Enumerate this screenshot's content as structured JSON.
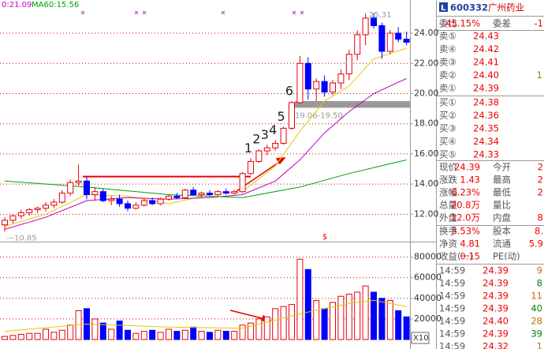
{
  "chart_data": {
    "type": "candlestick",
    "header_ma": "0:21.09",
    "header_ma60": "MA60:15.56",
    "open": [
      11.3,
      11.6,
      11.9,
      12.1,
      12.3,
      12.4,
      12.6,
      12.8,
      13.4,
      14.1,
      14.2,
      13.3,
      13.5,
      12.9,
      13.0,
      12.7,
      12.4,
      12.6,
      12.9,
      12.7,
      13.0,
      13.2,
      13.1,
      13.6,
      13.3,
      13.4,
      13.3,
      13.5,
      13.4,
      13.5,
      14.7,
      15.5,
      16.2,
      16.4,
      16.7,
      17.7,
      19.4,
      22.0,
      20.3,
      20.8,
      20.1,
      20.7,
      21.3,
      22.6,
      23.9,
      25.0,
      24.5,
      22.8,
      24.0,
      23.6
    ],
    "high": [
      11.8,
      12.0,
      12.3,
      12.4,
      12.5,
      12.8,
      13.0,
      13.6,
      14.3,
      15.3,
      14.5,
      13.8,
      13.7,
      13.2,
      13.3,
      12.9,
      12.8,
      13.0,
      13.1,
      13.1,
      13.3,
      13.4,
      13.7,
      13.8,
      13.5,
      13.6,
      13.6,
      13.7,
      13.6,
      14.8,
      15.7,
      16.3,
      16.6,
      16.9,
      17.8,
      19.5,
      22.5,
      22.4,
      21.0,
      21.2,
      20.9,
      21.6,
      22.9,
      24.2,
      25.3,
      25.31,
      24.7,
      24.2,
      24.4,
      24.1
    ],
    "low": [
      10.85,
      11.4,
      11.7,
      11.9,
      12.1,
      12.2,
      12.4,
      12.7,
      13.2,
      13.9,
      13.0,
      12.9,
      12.8,
      12.6,
      12.5,
      12.2,
      12.3,
      12.5,
      12.6,
      12.6,
      12.9,
      13.0,
      13.0,
      13.2,
      13.1,
      13.2,
      13.2,
      13.3,
      13.3,
      13.4,
      14.6,
      15.4,
      15.9,
      16.2,
      16.6,
      17.6,
      19.3,
      19.6,
      19.5,
      19.8,
      19.9,
      20.3,
      20.9,
      22.2,
      23.2,
      24.3,
      22.3,
      22.6,
      23.4,
      23.2
    ],
    "close": [
      11.6,
      11.9,
      12.1,
      12.3,
      12.4,
      12.6,
      12.8,
      13.4,
      14.1,
      14.2,
      13.3,
      13.5,
      12.9,
      13.0,
      12.7,
      12.4,
      12.6,
      12.9,
      12.7,
      13.0,
      13.2,
      13.1,
      13.6,
      13.3,
      13.4,
      13.3,
      13.5,
      13.4,
      13.5,
      14.7,
      15.5,
      16.2,
      16.4,
      16.7,
      17.7,
      19.4,
      22.0,
      20.3,
      20.8,
      20.1,
      20.7,
      21.3,
      22.6,
      23.9,
      25.0,
      24.5,
      22.8,
      24.0,
      23.6,
      23.4
    ],
    "up_color": "#e8000b",
    "down_color": "#0000ff",
    "ylim": [
      10.5,
      26.2
    ],
    "yticks": [
      {
        "value": 12,
        "label": "12.00"
      },
      {
        "value": 14,
        "label": "14.00"
      },
      {
        "value": 16,
        "label": "16.00"
      },
      {
        "value": 18,
        "label": "18.00"
      },
      {
        "value": 20,
        "label": "20.00"
      },
      {
        "value": 22,
        "label": "22.00"
      },
      {
        "value": 24,
        "label": "24.00"
      }
    ],
    "grid": true,
    "lines": [
      {
        "color": "#e6c800",
        "x": [
          0,
          5,
          10,
          15,
          20,
          25,
          29,
          33,
          36,
          39,
          42,
          45,
          49
        ],
        "values": [
          11.2,
          12.0,
          13.3,
          13.2,
          12.7,
          13.3,
          13.5,
          15.2,
          17.5,
          19.5,
          20.5,
          22.3,
          23.0
        ]
      },
      {
        "color": "#c000c0",
        "x": [
          0,
          5,
          10,
          15,
          20,
          25,
          29,
          33,
          36,
          39,
          42,
          45,
          49
        ],
        "values": [
          11.0,
          11.8,
          12.9,
          13.1,
          13.0,
          13.1,
          13.3,
          14.2,
          15.6,
          17.4,
          18.8,
          20.0,
          21.0
        ]
      },
      {
        "color": "#00a000",
        "x": [
          0,
          10,
          20,
          29,
          36,
          42,
          49
        ],
        "values": [
          14.2,
          13.8,
          13.3,
          13.1,
          13.8,
          14.7,
          15.6
        ]
      }
    ],
    "wave_labels": [
      "1",
      "2",
      "3",
      "4",
      "5",
      "6"
    ],
    "high_label": "25.31",
    "low_label": "—10.85",
    "resistance": {
      "low": 19.06,
      "high": 19.5,
      "label": "19.06-19.50"
    },
    "breakout_level": 14.5,
    "signal": "$",
    "volume": {
      "values": [
        3000,
        4000,
        5000,
        6000,
        6000,
        10000,
        7000,
        9000,
        14000,
        28000,
        30000,
        20000,
        16000,
        10000,
        18000,
        9000,
        6000,
        8000,
        9000,
        7000,
        10000,
        8000,
        9000,
        12000,
        8000,
        7000,
        9000,
        8000,
        8000,
        14000,
        16000,
        20000,
        22000,
        30000,
        32000,
        34000,
        78000,
        68000,
        38000,
        30000,
        36000,
        42000,
        44000,
        46000,
        52000,
        46000,
        40000,
        38000,
        28000,
        22000
      ],
      "ylim": [
        0,
        92000
      ],
      "yticks": [
        20000,
        40000,
        60000,
        80000
      ],
      "unit_label": "X10",
      "ma": {
        "color": "#e6c800",
        "x": [
          0,
          10,
          20,
          29,
          36,
          42,
          45,
          49
        ],
        "values": [
          8000,
          15000,
          12000,
          11000,
          25000,
          35000,
          38000,
          32000
        ]
      }
    }
  },
  "panel": {
    "icon": "L",
    "code": "600332",
    "name": "广州药业",
    "ratio": [
      "委比",
      "-45.15%",
      "委差",
      "-1"
    ],
    "sell": [
      [
        "卖⑤",
        "24.43"
      ],
      [
        "卖④",
        "24.42"
      ],
      [
        "卖③",
        "24.41"
      ],
      [
        "卖②",
        "24.40",
        "1"
      ],
      [
        "卖①",
        "24.39"
      ]
    ],
    "buy": [
      [
        "买①",
        "24.38"
      ],
      [
        "买②",
        "24.36"
      ],
      [
        "买③",
        "24.35"
      ],
      [
        "买④",
        "24.34"
      ],
      [
        "买⑤",
        "24.33"
      ]
    ],
    "stats": [
      [
        "现价",
        "24.39",
        "今开",
        "2"
      ],
      [
        "涨跌",
        "1.43",
        "最高",
        "2"
      ],
      [
        "涨幅",
        "6.23%",
        "最低",
        "2"
      ],
      [
        "总量",
        "20.8万",
        "量比"
      ],
      [
        "外盘",
        "12.0万",
        "内盘",
        "8"
      ]
    ],
    "info": [
      [
        "换手",
        "3.53%",
        "股本",
        "8."
      ],
      [
        "净资",
        "4.81",
        "流通",
        "5.9"
      ],
      [
        "收益(一)",
        "0.15",
        "PE(动)"
      ]
    ],
    "trades": [
      [
        "14:59",
        "24.39",
        "9"
      ],
      [
        "14:59",
        "24.39",
        "8"
      ],
      [
        "14:59",
        "24.39",
        "11"
      ],
      [
        "14:59",
        "24.39",
        "40"
      ],
      [
        "14:59",
        "24.40",
        "28"
      ],
      [
        "14:59",
        "24.39",
        "39"
      ],
      [
        "14:59",
        "24.32",
        "1"
      ]
    ]
  }
}
